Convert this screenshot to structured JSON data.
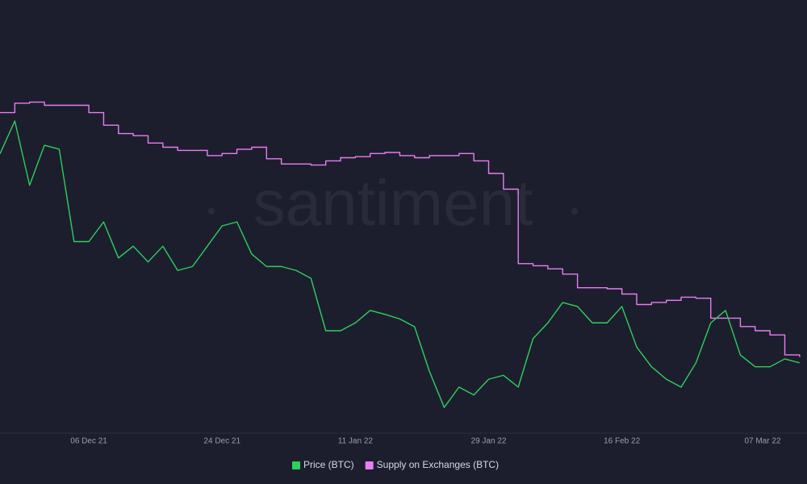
{
  "chart_data": {
    "type": "line",
    "watermark": "santiment",
    "x": [
      "2021-11-24",
      "2021-11-26",
      "2021-11-28",
      "2021-11-30",
      "2021-12-02",
      "2021-12-04",
      "2021-12-06",
      "2021-12-08",
      "2021-12-10",
      "2021-12-12",
      "2021-12-14",
      "2021-12-16",
      "2021-12-18",
      "2021-12-20",
      "2021-12-22",
      "2021-12-24",
      "2021-12-26",
      "2021-12-28",
      "2021-12-30",
      "2022-01-01",
      "2022-01-03",
      "2022-01-05",
      "2022-01-07",
      "2022-01-09",
      "2022-01-11",
      "2022-01-13",
      "2022-01-15",
      "2022-01-17",
      "2022-01-19",
      "2022-01-21",
      "2022-01-23",
      "2022-01-25",
      "2022-01-27",
      "2022-01-29",
      "2022-01-31",
      "2022-02-02",
      "2022-02-04",
      "2022-02-06",
      "2022-02-08",
      "2022-02-10",
      "2022-02-12",
      "2022-02-14",
      "2022-02-16",
      "2022-02-18",
      "2022-02-20",
      "2022-02-22",
      "2022-02-24",
      "2022-02-26",
      "2022-02-28",
      "2022-03-02",
      "2022-03-04",
      "2022-03-06",
      "2022-03-08",
      "2022-03-10",
      "2022-03-12"
    ],
    "xlim": [
      "2021-11-24",
      "2022-03-13"
    ],
    "xticks": [
      {
        "value": "2021-12-06",
        "label": "06 Dec 21"
      },
      {
        "value": "2021-12-24",
        "label": "24 Dec 21"
      },
      {
        "value": "2022-01-11",
        "label": "11 Jan 22"
      },
      {
        "value": "2022-01-29",
        "label": "29 Jan 22"
      },
      {
        "value": "2022-02-16",
        "label": "16 Feb 22"
      },
      {
        "value": "2022-03-07",
        "label": "07 Mar 22"
      }
    ],
    "ylim": [
      32000,
      64000
    ],
    "y2lim": [
      2200000,
      2600000
    ],
    "series": [
      {
        "name": "Price (BTC)",
        "color": "#2fd05a",
        "values": [
          53500,
          56000,
          51100,
          54150,
          53850,
          46800,
          46800,
          48300,
          45550,
          46450,
          45250,
          46450,
          44600,
          44900,
          46450,
          48000,
          48300,
          45850,
          44900,
          44900,
          44600,
          44000,
          40000,
          40000,
          40600,
          41550,
          41250,
          40900,
          40300,
          36900,
          34150,
          35700,
          35100,
          36300,
          36600,
          35700,
          39400,
          40600,
          42150,
          41850,
          40600,
          40600,
          41850,
          38750,
          37250,
          36300,
          35700,
          37550,
          40600,
          41550,
          38150,
          37250,
          37250,
          37850,
          37550
        ]
      },
      {
        "name": "Supply on Exchanges (BTC)",
        "color": "#e87ef0",
        "axis": "y2",
        "step": true,
        "values": [
          2508000,
          2517000,
          2518000,
          2515000,
          2515000,
          2515000,
          2508000,
          2496000,
          2488000,
          2486000,
          2479000,
          2475000,
          2472000,
          2472000,
          2467000,
          2469000,
          2473000,
          2475000,
          2464000,
          2459000,
          2459000,
          2458000,
          2462000,
          2465000,
          2466000,
          2469000,
          2470000,
          2467000,
          2465000,
          2467000,
          2467000,
          2469000,
          2462000,
          2450000,
          2435000,
          2364000,
          2362000,
          2359000,
          2354000,
          2341000,
          2341000,
          2340000,
          2335000,
          2325000,
          2327000,
          2329000,
          2332000,
          2331000,
          2312000,
          2312000,
          2304000,
          2300000,
          2296000,
          2277000,
          2275000
        ]
      }
    ]
  }
}
